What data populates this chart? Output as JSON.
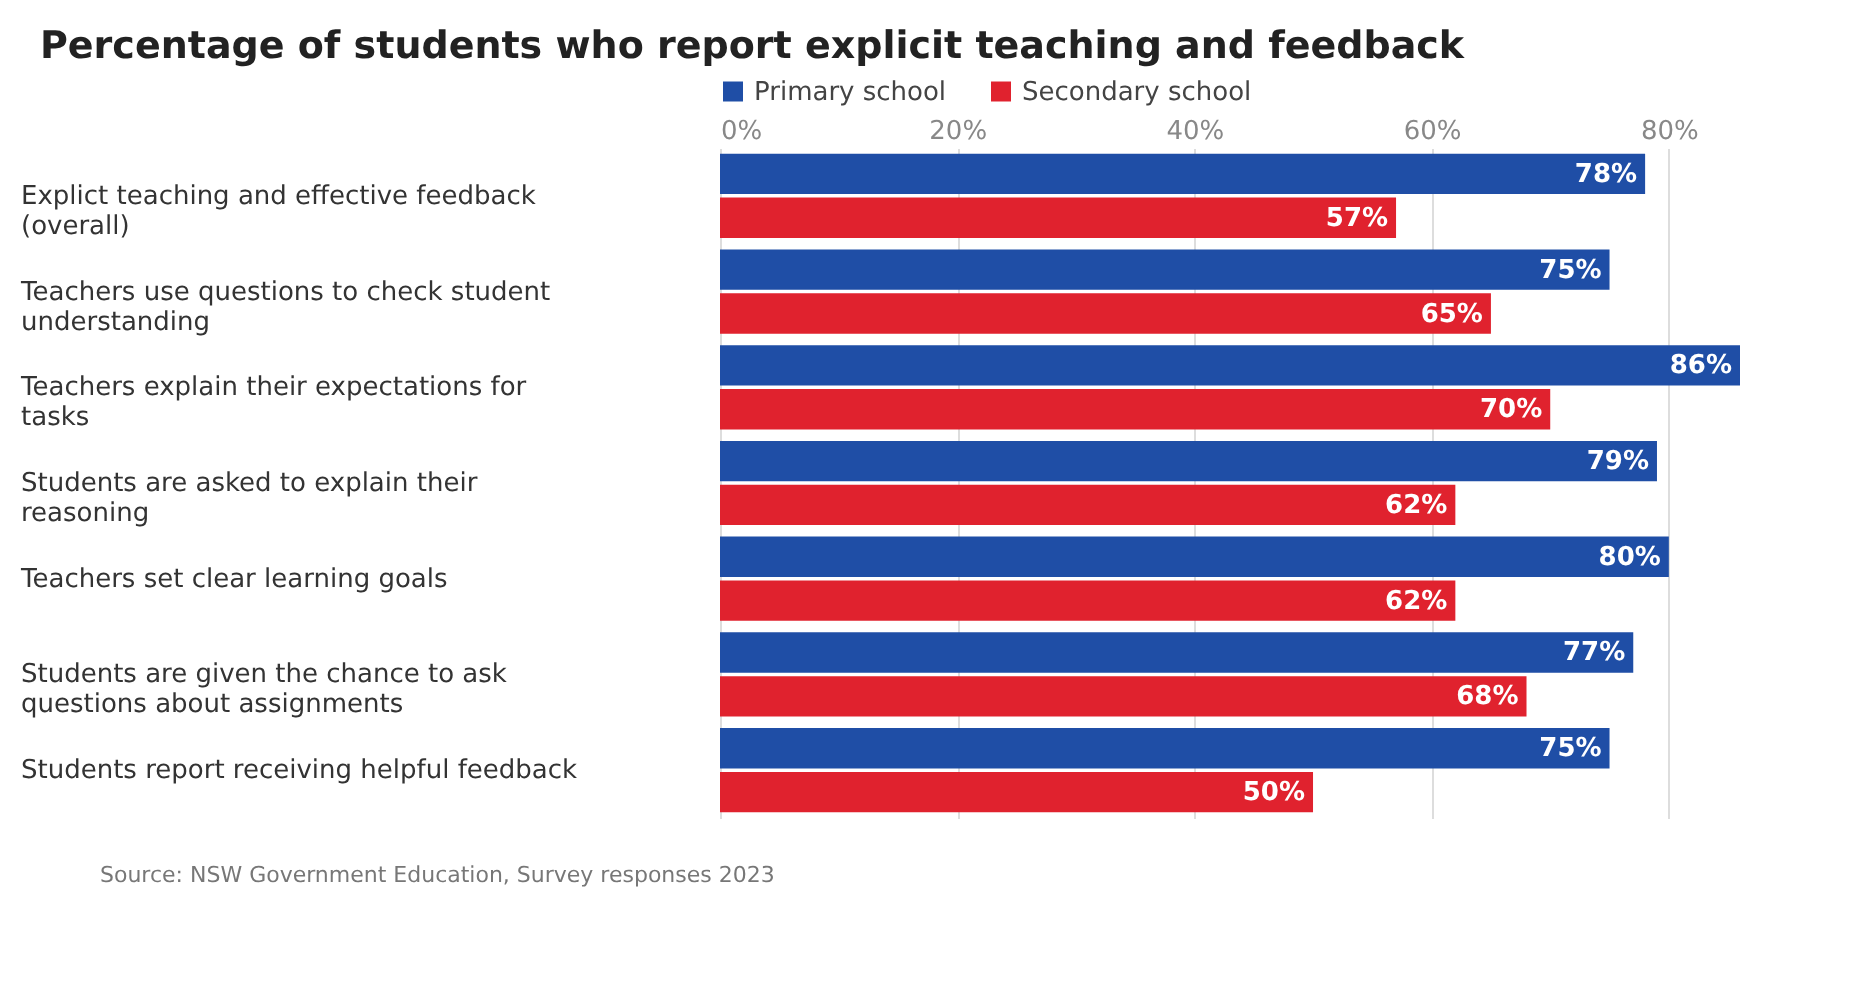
{
  "chart_data": {
    "type": "bar",
    "orientation": "horizontal",
    "title": "Percentage of students who report explicit teaching and feedback",
    "categories": [
      "Explict teaching and effective feedback (overall)",
      "Teachers use questions to check student understanding",
      "Teachers explain their expectations for tasks",
      "Students are asked to explain their reasoning",
      "Teachers set clear learning goals",
      "Students are given the chance to ask questions about assignments",
      "Students report receiving helpful feedback"
    ],
    "series": [
      {
        "name": "Primary school",
        "color": "#1f4ea6",
        "values": [
          78,
          75,
          86,
          79,
          80,
          77,
          75
        ],
        "value_labels": [
          "78%",
          "75%",
          "86%",
          "79%",
          "80%",
          "77%",
          "75%"
        ]
      },
      {
        "name": "Secondary school",
        "color": "#e0222e",
        "values": [
          57,
          65,
          70,
          62,
          62,
          68,
          50
        ],
        "value_labels": [
          "57%",
          "65%",
          "70%",
          "62%",
          "62%",
          "68%",
          "50%"
        ]
      }
    ],
    "xlim": [
      0,
      86
    ],
    "xticks": [
      {
        "value": 0,
        "label": "0%"
      },
      {
        "value": 20,
        "label": "20%"
      },
      {
        "value": 40,
        "label": "40%"
      },
      {
        "value": 60,
        "label": "60%"
      },
      {
        "value": 80,
        "label": "80%"
      }
    ],
    "grid": "x",
    "legend": "top left",
    "annotations": [
      "Source: NSW Government Education, Survey responses 2023"
    ]
  }
}
